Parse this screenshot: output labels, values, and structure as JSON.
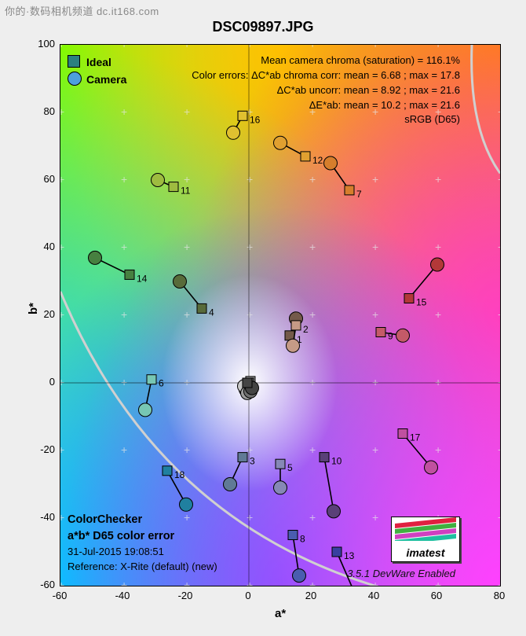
{
  "watermark": "你的·数码相机频道 dc.it168.com",
  "title": "DSC09897.JPG",
  "axes": {
    "x_label": "a*",
    "y_label": "b*",
    "xlim": [
      -60,
      80
    ],
    "ylim": [
      -60,
      100
    ],
    "xtick_step": 20,
    "ytick_step": 20
  },
  "legend": {
    "ideal": "Ideal",
    "ideal_color": "#2b8080",
    "camera": "Camera",
    "camera_color": "#4da0dd"
  },
  "stats": {
    "line1": "Mean camera chroma (saturation) = 116.1%",
    "line2": "Color errors: ΔC*ab chroma corr:  mean = 6.68 ;   max = 17.8",
    "line3": "ΔC*ab uncorr:  mean = 8.92 ;   max = 21.6",
    "line4": "ΔE*ab:  mean = 10.2 ;   max = 21.6",
    "line5": "sRGB (D65)"
  },
  "footer": {
    "name": "ColorChecker",
    "space": "a*b* D65 color error",
    "date": "31-Jul-2015 19:08:51",
    "reference": "Reference: X-Rite (default) (new)"
  },
  "devware": "3.5.1  DevWare Enabled",
  "logo": {
    "text": "imatest",
    "stripes": [
      "#e02040",
      "#40b040",
      "#d040c0",
      "#20c0a0"
    ]
  },
  "arc_color": "#d0d0d0",
  "grid_color": "#e8e8e8",
  "marker_sizes": {
    "square": 12,
    "circle_r": 8.5,
    "line_width": 1.6
  },
  "patches": [
    {
      "n": "1",
      "ideal_a": 13,
      "ideal_b": 14,
      "cam_a": 15,
      "cam_b": 19,
      "color": "#745a4a"
    },
    {
      "n": "2",
      "ideal_a": 15,
      "ideal_b": 17,
      "cam_a": 14,
      "cam_b": 11,
      "color": "#c59a86"
    },
    {
      "n": "3",
      "ideal_a": -2,
      "ideal_b": -22,
      "cam_a": -6,
      "cam_b": -30,
      "color": "#607a96"
    },
    {
      "n": "4",
      "ideal_a": -15,
      "ideal_b": 22,
      "cam_a": -22,
      "cam_b": 30,
      "color": "#586b3a"
    },
    {
      "n": "5",
      "ideal_a": 10,
      "ideal_b": -24,
      "cam_a": 10,
      "cam_b": -31,
      "color": "#8688b6"
    },
    {
      "n": "6",
      "ideal_a": -31,
      "ideal_b": 1,
      "cam_a": -33,
      "cam_b": -8,
      "color": "#77c7b3"
    },
    {
      "n": "7",
      "ideal_a": 32,
      "ideal_b": 57,
      "cam_a": 26,
      "cam_b": 65,
      "color": "#d67e2c"
    },
    {
      "n": "8",
      "ideal_a": 14,
      "ideal_b": -45,
      "cam_a": 16,
      "cam_b": -57,
      "color": "#4a5db0"
    },
    {
      "n": "9",
      "ideal_a": 42,
      "ideal_b": 15,
      "cam_a": 49,
      "cam_b": 14,
      "color": "#c45a68"
    },
    {
      "n": "10",
      "ideal_a": 24,
      "ideal_b": -22,
      "cam_a": 27,
      "cam_b": -38,
      "color": "#5a4078"
    },
    {
      "n": "11",
      "ideal_a": -24,
      "ideal_b": 58,
      "cam_a": -29,
      "cam_b": 60,
      "color": "#9ebc40"
    },
    {
      "n": "12",
      "ideal_a": 18,
      "ideal_b": 67,
      "cam_a": 10,
      "cam_b": 71,
      "color": "#e0a030"
    },
    {
      "n": "13",
      "ideal_a": 28,
      "ideal_b": -50,
      "cam_a": 35,
      "cam_b": -65,
      "color": "#3840a0"
    },
    {
      "n": "14",
      "ideal_a": -38,
      "ideal_b": 32,
      "cam_a": -49,
      "cam_b": 37,
      "color": "#478040"
    },
    {
      "n": "15",
      "ideal_a": 51,
      "ideal_b": 25,
      "cam_a": 60,
      "cam_b": 35,
      "color": "#b33838"
    },
    {
      "n": "16",
      "ideal_a": -2,
      "ideal_b": 79,
      "cam_a": -5,
      "cam_b": 74,
      "color": "#e0c030"
    },
    {
      "n": "17",
      "ideal_a": 49,
      "ideal_b": -15,
      "cam_a": 58,
      "cam_b": -25,
      "color": "#c050a0"
    },
    {
      "n": "18",
      "ideal_a": -26,
      "ideal_b": -26,
      "cam_a": -20,
      "cam_b": -36,
      "color": "#2080a0"
    }
  ],
  "grays": [
    {
      "ideal_a": -0.5,
      "ideal_b": -0.5,
      "cam_a": -1,
      "cam_b": -2,
      "color": "#f0f0f0"
    },
    {
      "ideal_a": 0,
      "ideal_b": 0,
      "cam_a": -1.5,
      "cam_b": -1,
      "color": "#c8c8c8"
    },
    {
      "ideal_a": 0.5,
      "ideal_b": 0.5,
      "cam_a": -0.5,
      "cam_b": -3,
      "color": "#9c9c9c"
    },
    {
      "ideal_a": 0,
      "ideal_b": 0,
      "cam_a": 0.5,
      "cam_b": -2.5,
      "color": "#707070"
    },
    {
      "ideal_a": -0.5,
      "ideal_b": 0,
      "cam_a": 1,
      "cam_b": -1.5,
      "color": "#444444"
    }
  ]
}
